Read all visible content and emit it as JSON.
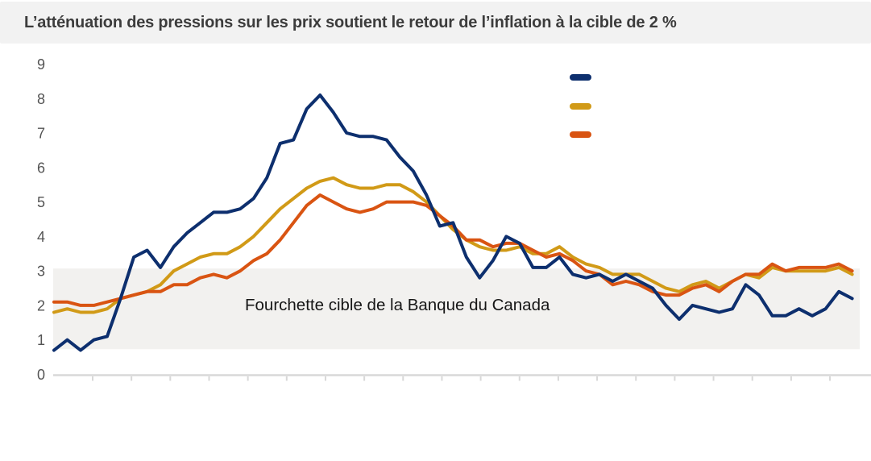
{
  "header": {
    "title": "L’atténuation des pressions sur les prix soutient le retour de l’inflation à la cible de 2 %"
  },
  "chart_data": {
    "type": "line",
    "title": "L’atténuation des pressions sur les prix soutient le retour de l’inflation à la cible de 2 %",
    "ylim": [
      0,
      9
    ],
    "yticks": [
      0,
      1,
      2,
      3,
      4,
      5,
      6,
      7,
      8,
      9
    ],
    "grid": false,
    "x_axis": {
      "labels_visible": false,
      "tick_count": 20
    },
    "target_band": {
      "label": "Fourchette cible de la Banque du Canada",
      "range": [
        1,
        3
      ],
      "visual_range": [
        0.73,
        3.07
      ],
      "fill": "#f2f1ef"
    },
    "legend": {
      "position": "top-right",
      "items": [
        {
          "label": "",
          "color": "#0d2f6e"
        },
        {
          "label": "",
          "color": "#d19a17"
        },
        {
          "label": "",
          "color": "#d95412"
        }
      ]
    },
    "axis_color": "#d8d8d8",
    "series": [
      {
        "id": "gold",
        "label": "",
        "color": "#d19a17",
        "values": [
          1.8,
          1.9,
          1.8,
          1.8,
          1.9,
          2.2,
          2.3,
          2.4,
          2.6,
          3.0,
          3.2,
          3.4,
          3.5,
          3.5,
          3.7,
          4.0,
          4.4,
          4.8,
          5.1,
          5.4,
          5.6,
          5.7,
          5.5,
          5.4,
          5.4,
          5.5,
          5.5,
          5.3,
          5.0,
          4.6,
          4.2,
          3.9,
          3.7,
          3.6,
          3.6,
          3.7,
          3.5,
          3.5,
          3.7,
          3.4,
          3.2,
          3.1,
          2.9,
          2.9,
          2.9,
          2.7,
          2.5,
          2.4,
          2.6,
          2.7,
          2.5,
          2.7,
          2.9,
          2.8,
          3.1,
          3.0,
          3.0,
          3.0,
          3.0,
          3.1,
          2.9
        ]
      },
      {
        "id": "orange",
        "label": "",
        "color": "#d95412",
        "values": [
          2.1,
          2.1,
          2.0,
          2.0,
          2.1,
          2.2,
          2.3,
          2.4,
          2.4,
          2.6,
          2.6,
          2.8,
          2.9,
          2.8,
          3.0,
          3.3,
          3.5,
          3.9,
          4.4,
          4.9,
          5.2,
          5.0,
          4.8,
          4.7,
          4.8,
          5.0,
          5.0,
          5.0,
          4.9,
          4.6,
          4.3,
          3.9,
          3.9,
          3.7,
          3.8,
          3.8,
          3.6,
          3.4,
          3.5,
          3.3,
          3.0,
          2.9,
          2.6,
          2.7,
          2.6,
          2.4,
          2.3,
          2.3,
          2.5,
          2.6,
          2.4,
          2.7,
          2.9,
          2.9,
          3.2,
          3.0,
          3.1,
          3.1,
          3.1,
          3.2,
          3.0
        ]
      },
      {
        "id": "blue",
        "label": "",
        "color": "#0d2f6e",
        "values": [
          0.7,
          1.0,
          0.7,
          1.0,
          1.1,
          2.2,
          3.4,
          3.6,
          3.1,
          3.7,
          4.1,
          4.4,
          4.7,
          4.7,
          4.8,
          5.1,
          5.7,
          6.7,
          6.8,
          7.7,
          8.1,
          7.6,
          7.0,
          6.9,
          6.9,
          6.8,
          6.3,
          5.9,
          5.2,
          4.3,
          4.4,
          3.4,
          2.8,
          3.3,
          4.0,
          3.8,
          3.1,
          3.1,
          3.4,
          2.9,
          2.8,
          2.9,
          2.7,
          2.9,
          2.7,
          2.5,
          2.0,
          1.6,
          2.0,
          1.9,
          1.8,
          1.9,
          2.6,
          2.3,
          1.7,
          1.7,
          1.9,
          1.7,
          1.9,
          2.4,
          2.2
        ]
      }
    ]
  }
}
